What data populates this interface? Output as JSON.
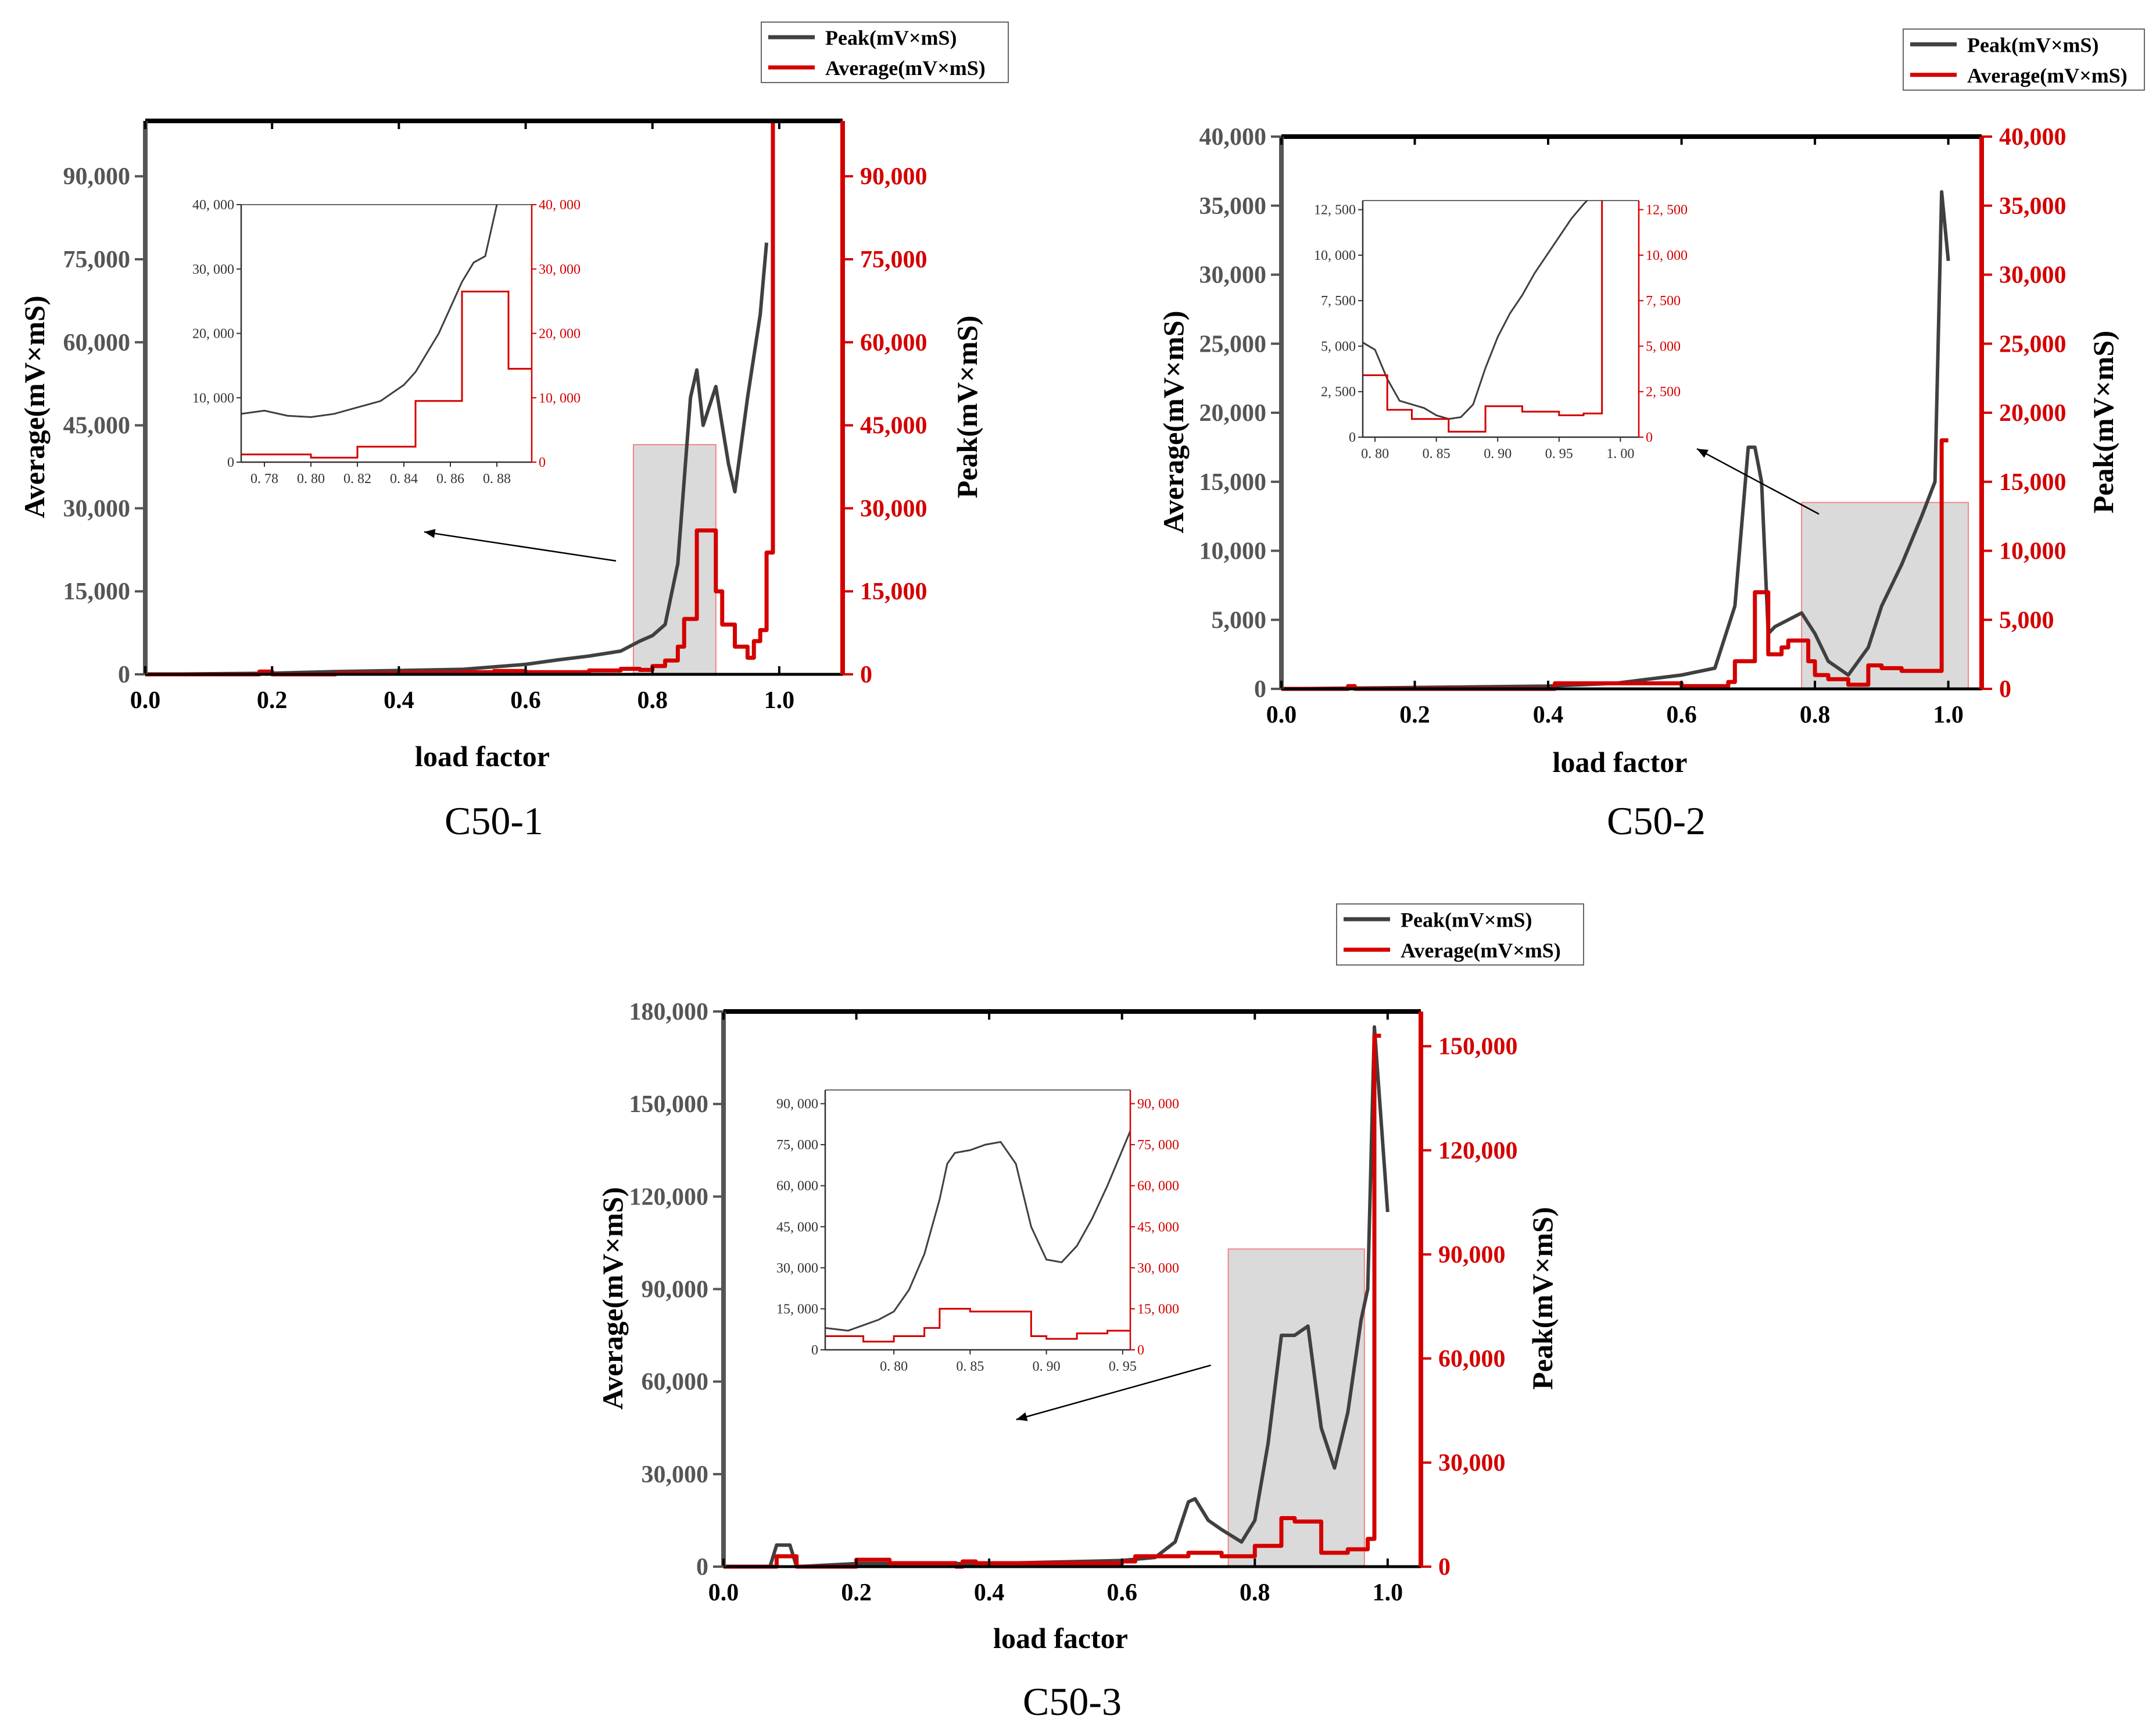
{
  "figure": {
    "captions": [
      "C50-1",
      "C50-2",
      "C50-3"
    ]
  },
  "colors": {
    "peak": "#404040",
    "average": "#d40000",
    "highlight_fill": "#d9d9d9",
    "highlight_stroke": "#f08080"
  },
  "chart_data": [
    {
      "type": "line",
      "caption": "C50-1",
      "xlabel": "load factor",
      "ylabel_left": "Average(mV×mS)",
      "ylabel_right": "Peak(mV×mS)",
      "xlim": [
        0,
        1.1
      ],
      "ylim": [
        0,
        100000
      ],
      "xticks": [
        0.0,
        0.2,
        0.4,
        0.6,
        0.8,
        1.0
      ],
      "xtick_labels": [
        "0.0",
        "0.2",
        "0.4",
        "0.6",
        "0.8",
        "1.0"
      ],
      "yticks": [
        0,
        15000,
        30000,
        45000,
        60000,
        75000,
        90000
      ],
      "ytick_labels": [
        "0",
        "15,000",
        "30,000",
        "45,000",
        "60,000",
        "75,000",
        "90,000"
      ],
      "legend": [
        "Peak(mV×mS)",
        "Average(mV×mS)"
      ],
      "highlight": {
        "x": [
          0.77,
          0.9
        ],
        "y": [
          0,
          41500
        ]
      },
      "series": [
        {
          "name": "Peak(mV×mS)",
          "x": [
            0.0,
            0.2,
            0.3,
            0.4,
            0.5,
            0.6,
            0.65,
            0.7,
            0.75,
            0.78,
            0.8,
            0.82,
            0.84,
            0.85,
            0.86,
            0.87,
            0.88,
            0.9,
            0.92,
            0.93,
            0.95,
            0.97,
            0.98
          ],
          "y": [
            0,
            200,
            500,
            700,
            900,
            1800,
            2600,
            3300,
            4200,
            6000,
            7000,
            9000,
            20000,
            35000,
            50000,
            55000,
            45000,
            52000,
            38000,
            33000,
            50000,
            65000,
            78000
          ]
        },
        {
          "name": "Average(mV×mS)",
          "x": [
            0.0,
            0.18,
            0.2,
            0.3,
            0.4,
            0.5,
            0.55,
            0.6,
            0.7,
            0.75,
            0.78,
            0.8,
            0.82,
            0.84,
            0.85,
            0.87,
            0.88,
            0.9,
            0.91,
            0.93,
            0.95,
            0.96,
            0.97,
            0.98,
            0.99,
            1.0
          ],
          "y": [
            0,
            500,
            0,
            200,
            300,
            400,
            600,
            400,
            700,
            1000,
            800,
            1500,
            2500,
            5000,
            10000,
            26000,
            26000,
            15000,
            9000,
            5000,
            3000,
            6000,
            8000,
            22000,
            100000,
            100000
          ]
        }
      ],
      "inset": {
        "xlim": [
          0.77,
          0.895
        ],
        "ylim": [
          0,
          40000
        ],
        "xtick_labels": [
          "0. 78",
          "0. 80",
          "0. 82",
          "0. 84",
          "0. 86",
          "0. 88"
        ],
        "ytick_labels": [
          "0",
          "10, 000",
          "20, 000",
          "30, 000",
          "40, 000"
        ],
        "peak": {
          "x": [
            0.77,
            0.78,
            0.79,
            0.8,
            0.81,
            0.82,
            0.83,
            0.84,
            0.845,
            0.85,
            0.855,
            0.86,
            0.865,
            0.87,
            0.875,
            0.88,
            0.885,
            0.89,
            0.895
          ],
          "y": [
            7500,
            8000,
            7200,
            7000,
            7500,
            8500,
            9500,
            12000,
            14000,
            17000,
            20000,
            24000,
            28000,
            31000,
            32000,
            40000,
            42000,
            41000,
            40500
          ]
        },
        "average": {
          "x": [
            0.77,
            0.79,
            0.8,
            0.81,
            0.82,
            0.83,
            0.84,
            0.845,
            0.85,
            0.855,
            0.86,
            0.865,
            0.87,
            0.875,
            0.88,
            0.885,
            0.89,
            0.895
          ],
          "y": [
            1200,
            1200,
            700,
            700,
            2400,
            2400,
            2400,
            9500,
            9500,
            9500,
            9500,
            26500,
            26500,
            26500,
            26500,
            14500,
            14500,
            14500
          ]
        }
      }
    },
    {
      "type": "line",
      "caption": "C50-2",
      "xlabel": "load factor",
      "ylabel_left": "Average(mV×mS)",
      "ylabel_right": "Peak(mV×mS)",
      "xlim": [
        0,
        1.05
      ],
      "ylim": [
        0,
        40000
      ],
      "xticks": [
        0.0,
        0.2,
        0.4,
        0.6,
        0.8,
        1.0
      ],
      "xtick_labels": [
        "0.0",
        "0.2",
        "0.4",
        "0.6",
        "0.8",
        "1.0"
      ],
      "yticks": [
        0,
        5000,
        10000,
        15000,
        20000,
        25000,
        30000,
        35000,
        40000
      ],
      "ytick_labels": [
        "0",
        "5,000",
        "10,000",
        "15,000",
        "20,000",
        "25,000",
        "30,000",
        "35,000",
        "40,000"
      ],
      "legend": [
        "Peak(mV×mS)",
        "Average(mV×mS)"
      ],
      "highlight": {
        "x": [
          0.78,
          1.03
        ],
        "y": [
          0,
          13500
        ]
      },
      "series": [
        {
          "name": "Peak(mV×mS)",
          "x": [
            0.0,
            0.2,
            0.4,
            0.5,
            0.55,
            0.6,
            0.65,
            0.68,
            0.7,
            0.71,
            0.72,
            0.73,
            0.74,
            0.76,
            0.78,
            0.8,
            0.82,
            0.85,
            0.88,
            0.9,
            0.93,
            0.96,
            0.98,
            0.99,
            1.0
          ],
          "y": [
            0,
            100,
            200,
            400,
            700,
            1000,
            1500,
            6000,
            17500,
            17500,
            15000,
            4000,
            4500,
            5000,
            5500,
            4000,
            2000,
            1000,
            3000,
            6000,
            9000,
            12500,
            15000,
            36000,
            31000
          ]
        },
        {
          "name": "Average(mV×mS)",
          "x": [
            0.0,
            0.1,
            0.11,
            0.4,
            0.41,
            0.6,
            0.67,
            0.68,
            0.7,
            0.71,
            0.72,
            0.73,
            0.75,
            0.76,
            0.78,
            0.79,
            0.8,
            0.82,
            0.85,
            0.88,
            0.9,
            0.93,
            0.97,
            0.98,
            0.99,
            1.0
          ],
          "y": [
            0,
            200,
            0,
            0,
            400,
            200,
            500,
            2000,
            2000,
            7000,
            7000,
            2500,
            3000,
            3500,
            3500,
            2000,
            1000,
            700,
            300,
            1700,
            1500,
            1300,
            1300,
            1300,
            18000,
            18000
          ]
        }
      ],
      "inset": {
        "xlim": [
          0.79,
          1.015
        ],
        "ylim": [
          0,
          13000
        ],
        "xtick_labels": [
          "0. 80",
          "0. 85",
          "0. 90",
          "0. 95",
          "1. 00"
        ],
        "ytick_labels": [
          "0",
          "2, 500",
          "5, 000",
          "7, 500",
          "10, 000",
          "12, 500"
        ],
        "peak": {
          "x": [
            0.79,
            0.8,
            0.81,
            0.82,
            0.83,
            0.84,
            0.85,
            0.86,
            0.87,
            0.88,
            0.89,
            0.9,
            0.91,
            0.92,
            0.93,
            0.94,
            0.95,
            0.96,
            0.97,
            0.98
          ],
          "y": [
            5200,
            4800,
            3200,
            2000,
            1800,
            1600,
            1200,
            1000,
            1100,
            1800,
            3800,
            5500,
            6800,
            7800,
            9000,
            10000,
            11000,
            12000,
            12800,
            13500
          ]
        },
        "average": {
          "x": [
            0.79,
            0.8,
            0.81,
            0.82,
            0.83,
            0.84,
            0.85,
            0.86,
            0.87,
            0.88,
            0.89,
            0.9,
            0.91,
            0.92,
            0.93,
            0.95,
            0.96,
            0.97,
            0.98,
            0.985,
            1.015
          ],
          "y": [
            3400,
            3400,
            1500,
            1500,
            1000,
            1000,
            1000,
            300,
            300,
            300,
            1700,
            1700,
            1700,
            1400,
            1400,
            1200,
            1200,
            1300,
            1300,
            13500,
            13500
          ]
        }
      }
    },
    {
      "type": "line",
      "caption": "C50-3",
      "xlabel": "load factor",
      "ylabel_left": "Average(mV×mS)",
      "ylabel_right": "Peak(mV×mS)",
      "xlim": [
        0,
        1.05
      ],
      "ylim": [
        0,
        180000
      ],
      "xticks": [
        0.0,
        0.2,
        0.4,
        0.6,
        0.8,
        1.0
      ],
      "xtick_labels": [
        "0.0",
        "0.2",
        "0.4",
        "0.6",
        "0.8",
        "1.0"
      ],
      "yticks": [
        0,
        30000,
        60000,
        90000,
        120000,
        150000,
        180000
      ],
      "ytick_labels": [
        "0",
        "30,000",
        "60,000",
        "90,000",
        "120,000",
        "150,000",
        "180,000"
      ],
      "right_yticks": [
        0,
        30000,
        60000,
        90000,
        120000,
        150000
      ],
      "right_ytick_labels": [
        "0",
        "30,000",
        "60,000",
        "90,000",
        "120,000",
        "150,000"
      ],
      "right_ylim": [
        0,
        160000
      ],
      "legend": [
        "Peak(mV×mS)",
        "Average(mV×mS)"
      ],
      "highlight": {
        "x": [
          0.76,
          0.965
        ],
        "y": [
          0,
          103000
        ]
      },
      "series": [
        {
          "name": "Peak(mV×mS)",
          "x": [
            0.0,
            0.07,
            0.08,
            0.1,
            0.11,
            0.2,
            0.4,
            0.6,
            0.65,
            0.68,
            0.7,
            0.71,
            0.73,
            0.75,
            0.78,
            0.8,
            0.82,
            0.84,
            0.86,
            0.88,
            0.9,
            0.92,
            0.94,
            0.96,
            0.97,
            0.98,
            1.0
          ],
          "y": [
            0,
            0,
            7000,
            7000,
            0,
            1000,
            1000,
            2000,
            3000,
            8000,
            21000,
            22000,
            15000,
            12000,
            8000,
            15000,
            40000,
            75000,
            75000,
            78000,
            45000,
            32000,
            50000,
            80000,
            90000,
            175000,
            115000
          ]
        },
        {
          "name": "Average(mV×mS)",
          "x": [
            0.0,
            0.08,
            0.09,
            0.1,
            0.11,
            0.2,
            0.21,
            0.25,
            0.35,
            0.36,
            0.38,
            0.6,
            0.62,
            0.7,
            0.74,
            0.75,
            0.78,
            0.8,
            0.82,
            0.84,
            0.86,
            0.88,
            0.9,
            0.92,
            0.94,
            0.96,
            0.97,
            0.98,
            0.99
          ],
          "y": [
            0,
            3000,
            3000,
            3000,
            0,
            2000,
            2000,
            1000,
            0,
            1500,
            1000,
            1500,
            3000,
            4000,
            4000,
            3000,
            3000,
            6000,
            6000,
            14000,
            13000,
            13000,
            4000,
            4000,
            5000,
            5000,
            8000,
            153000,
            153000
          ]
        }
      ],
      "inset": {
        "xlim": [
          0.755,
          0.955
        ],
        "ylim": [
          0,
          95000
        ],
        "xtick_labels": [
          "0. 80",
          "0. 85",
          "0. 90",
          "0. 95"
        ],
        "ytick_labels": [
          "0",
          "15, 000",
          "30, 000",
          "45, 000",
          "60, 000",
          "75, 000",
          "90, 000"
        ],
        "peak": {
          "x": [
            0.755,
            0.77,
            0.78,
            0.79,
            0.8,
            0.81,
            0.82,
            0.83,
            0.835,
            0.84,
            0.85,
            0.86,
            0.87,
            0.88,
            0.89,
            0.9,
            0.91,
            0.92,
            0.93,
            0.94,
            0.955
          ],
          "y": [
            8000,
            7000,
            9000,
            11000,
            14000,
            22000,
            35000,
            55000,
            68000,
            72000,
            73000,
            75000,
            76000,
            68000,
            45000,
            33000,
            32000,
            38000,
            48000,
            60000,
            80000
          ]
        },
        "average": {
          "x": [
            0.755,
            0.77,
            0.78,
            0.79,
            0.8,
            0.81,
            0.82,
            0.83,
            0.84,
            0.85,
            0.86,
            0.87,
            0.88,
            0.89,
            0.9,
            0.91,
            0.92,
            0.93,
            0.94,
            0.955
          ],
          "y": [
            5000,
            5000,
            3000,
            3000,
            5000,
            5000,
            8000,
            15000,
            15000,
            14000,
            14000,
            14000,
            14000,
            5000,
            4000,
            4000,
            6000,
            6000,
            7000,
            7000
          ]
        }
      }
    }
  ]
}
